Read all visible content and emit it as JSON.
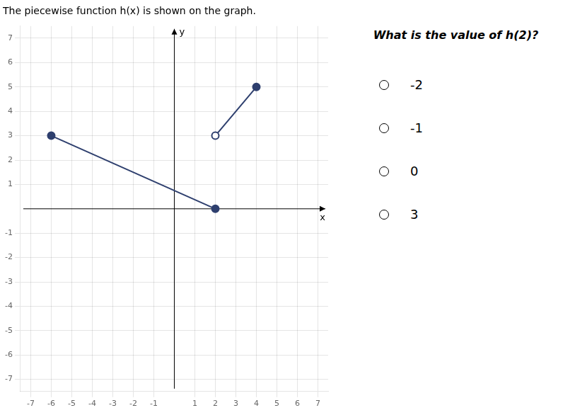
{
  "chart_data": {
    "type": "line",
    "title": "The piecewise function h(x) is shown on the graph.",
    "xlabel": "x",
    "ylabel": "y",
    "annotations": [
      "What is the value of h(2)?",
      "-2",
      "-1",
      "0",
      "3"
    ],
    "xlim": [
      -7.5,
      7.5
    ],
    "ylim": [
      -7.5,
      7.5
    ],
    "xticks": [
      -7,
      -6,
      -5,
      -4,
      -3,
      -2,
      -1,
      1,
      2,
      3,
      4,
      5,
      6,
      7
    ],
    "yticks": [
      -7,
      -6,
      -5,
      -4,
      -3,
      -2,
      -1,
      1,
      2,
      3,
      4,
      5,
      6,
      7
    ],
    "grid": true,
    "series": [
      {
        "type": "line",
        "x": [
          -6,
          2
        ],
        "values": [
          3,
          0
        ],
        "color": "#2e3f6e",
        "marker": "none"
      },
      {
        "type": "line",
        "x": [
          2,
          4
        ],
        "values": [
          3,
          5
        ],
        "color": "#2e3f6e",
        "marker": "none"
      },
      {
        "type": "scatter",
        "x": [
          -6,
          2,
          4
        ],
        "values": [
          3,
          0,
          5
        ],
        "color": "#2e3f6e",
        "marker": "filled_circle"
      },
      {
        "type": "scatter",
        "x": [
          2
        ],
        "values": [
          3
        ],
        "color": "#2e3f6e",
        "marker": "open_circle"
      }
    ]
  }
}
